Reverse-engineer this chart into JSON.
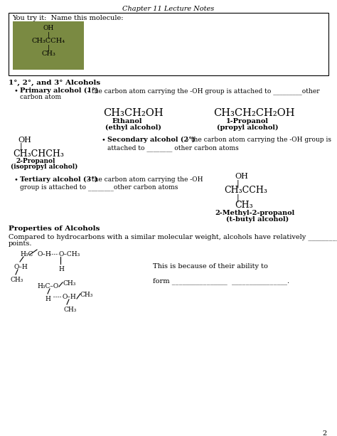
{
  "title": "Chapter 11 Lecture Notes",
  "page_number": "2",
  "bg_color": "#ffffff",
  "try_it_text": "You try it:  Name this molecule:",
  "green_box_color": "#7a8a42",
  "mol_try": [
    "OH",
    "|",
    "CH₃CCH₄",
    "|",
    "CH₃"
  ],
  "section1_header": "1°, 2°, and 3° Alcohols",
  "ethanol_formula": "CH₃CH₂OH",
  "ethanol_name": "Ethanol",
  "ethanol_alias": "(ethyl alcohol)",
  "propanol_formula": "CH₃CH₂CH₂OH",
  "propanol_name": "1-Propanol",
  "propanol_alias": "(propyl alcohol)",
  "mol_2prop": [
    "OH",
    "|",
    "CH₃CHCH₃"
  ],
  "mol_2prop_name": "2-Propanol",
  "mol_2prop_alias": "(isopropyl alcohol)",
  "mol_tert": [
    "OH",
    "|",
    "CH₃CCH₃",
    "|",
    "CH₃"
  ],
  "mol_tert_name": "2-Methyl-2-propanol",
  "mol_tert_alias": "(t-butyl alcohol)",
  "properties_header": "Properties of Alcohols",
  "properties_line1": "Compared to hydrocarbons with a similar molecular weight, alcohols have relatively _________  boiling",
  "properties_line2": "points.",
  "ability_text": "This is because of their ability to",
  "form_text": "form ________________  ________________."
}
